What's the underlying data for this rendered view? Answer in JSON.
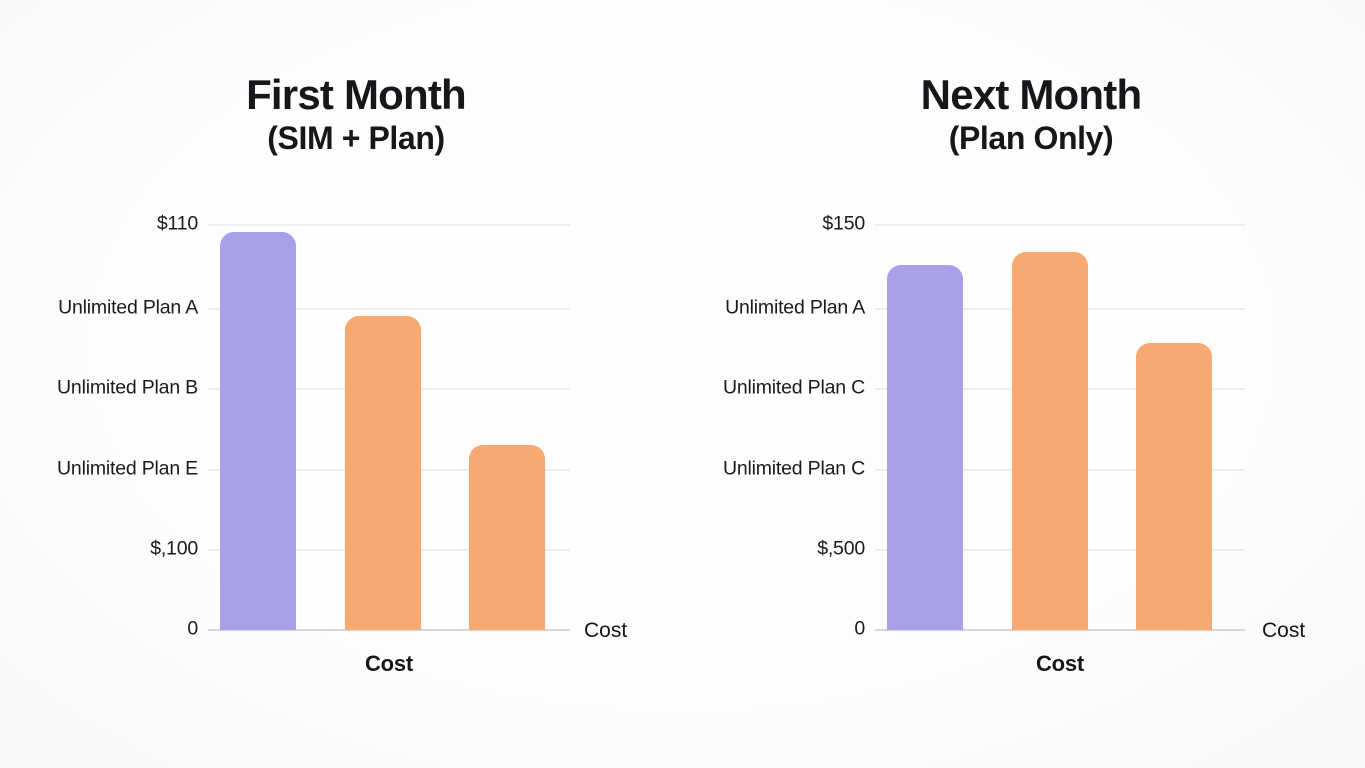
{
  "page": {
    "background": "#fcfcfc"
  },
  "colors": {
    "purple_bar": "#a8a0e8",
    "orange_bar": "#f6aa71",
    "gridline": "#ededef",
    "axis_line": "#d8d8da",
    "text": "#17171b"
  },
  "chart_data": [
    {
      "type": "bar",
      "title": "First Month",
      "subtitle": "(SIM + Plan)",
      "xlabel": "Cost",
      "x_axis_right_label": "Cost",
      "ytick_labels": [
        "$110",
        "Unlimited Plan A",
        "Unlimited Plan B",
        "Unlimited Plan E",
        "$,100",
        "0"
      ],
      "categories": [
        "bar-1",
        "bar-2",
        "bar-3"
      ],
      "series": [
        {
          "name": "Cost",
          "values_gridline_units": [
            4.91,
            3.88,
            2.28
          ]
        }
      ],
      "bar_colors": [
        "#a8a0e8",
        "#f6aa71",
        "#f6aa71"
      ],
      "ylim_gridline_units": [
        0,
        5
      ],
      "grid": true,
      "legend": false
    },
    {
      "type": "bar",
      "title": "Next Month",
      "subtitle": "(Plan Only)",
      "xlabel": "Cost",
      "x_axis_right_label": "Cost",
      "ytick_labels": [
        "$150",
        "Unlimited Plan A",
        "Unlimited Plan C",
        "Unlimited Plan C",
        "$,500",
        "0"
      ],
      "categories": [
        "bar-1",
        "bar-2",
        "bar-3"
      ],
      "series": [
        {
          "name": "Cost",
          "values_gridline_units": [
            4.51,
            4.67,
            3.54
          ]
        }
      ],
      "bar_colors": [
        "#a8a0e8",
        "#f6aa71",
        "#f6aa71"
      ],
      "ylim_gridline_units": [
        0,
        5
      ],
      "grid": true,
      "legend": false
    }
  ]
}
